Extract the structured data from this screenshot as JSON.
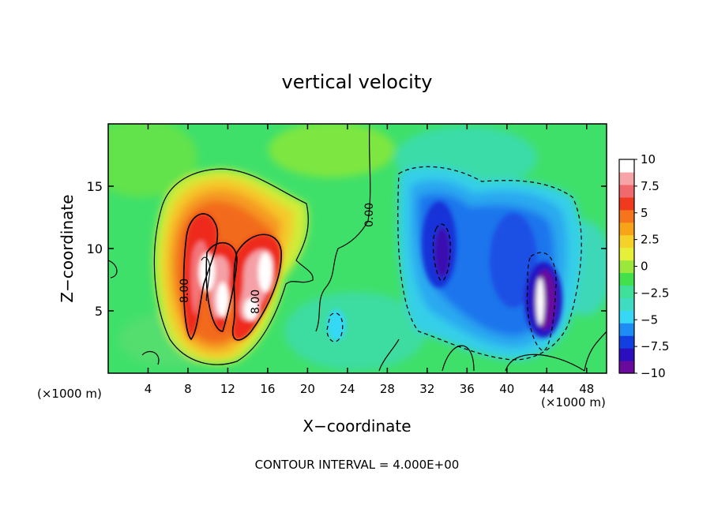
{
  "chart_data": {
    "type": "heatmap",
    "title": "vertical velocity",
    "xlabel": "X−coordinate",
    "ylabel": "Z−coordinate",
    "x_units_left": "(×1000 m)",
    "x_units_right": "(×1000 m)",
    "xlim": [
      0,
      50
    ],
    "ylim": [
      0,
      20
    ],
    "x_ticks": [
      4,
      8,
      12,
      16,
      20,
      24,
      28,
      32,
      36,
      40,
      44,
      48
    ],
    "y_ticks": [
      5,
      10,
      15
    ],
    "footer": "CONTOUR INTERVAL = 4.000E+00",
    "colorbar": {
      "range": [
        -10,
        10
      ],
      "ticks": [
        10,
        7.5,
        5,
        2.5,
        0,
        -2.5,
        -5,
        -7.5,
        -10
      ],
      "labels": [
        "10",
        "7.5",
        "5",
        "2.5",
        "0",
        "−2.5",
        "−5",
        "−7.5",
        "−10"
      ],
      "colors": [
        "#6a0a9c",
        "#2b0fbf",
        "#1240e0",
        "#1e8cf5",
        "#36d8f5",
        "#3fdcc2",
        "#3ee09a",
        "#42e04a",
        "#9ae83c",
        "#e6f03a",
        "#f5d22a",
        "#f8a418",
        "#f6741c",
        "#f03a1e",
        "#f0696d",
        "#f7a4a8",
        "#ffffff"
      ]
    },
    "contour_labels": [
      "8.00",
      "8.00",
      "0.00"
    ],
    "features": [
      {
        "type": "updraft",
        "x": 12,
        "z": 9,
        "peak": 10,
        "note": "positive core"
      },
      {
        "type": "downdraft",
        "x": 34,
        "z": 10,
        "peak": -8
      },
      {
        "type": "downdraft",
        "x": 44,
        "z": 6,
        "peak": -10
      }
    ]
  }
}
